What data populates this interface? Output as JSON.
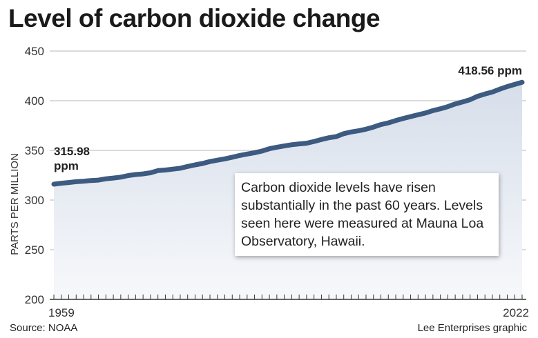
{
  "chart_data": {
    "type": "area",
    "title": "Level of carbon dioxide change",
    "ylabel": "PARTS PER MILLION",
    "xlabel": "",
    "ylim": [
      200,
      450
    ],
    "yticks": [
      200,
      250,
      300,
      350,
      400,
      450
    ],
    "xlim": [
      1959,
      2022
    ],
    "xtick_labels": [
      "1959",
      "2022"
    ],
    "grid": "horizontal",
    "line_color": "#3d5a80",
    "fill_color": "#dde3ee",
    "x": [
      1959,
      1960,
      1961,
      1962,
      1963,
      1964,
      1965,
      1966,
      1967,
      1968,
      1969,
      1970,
      1971,
      1972,
      1973,
      1974,
      1975,
      1976,
      1977,
      1978,
      1979,
      1980,
      1981,
      1982,
      1983,
      1984,
      1985,
      1986,
      1987,
      1988,
      1989,
      1990,
      1991,
      1992,
      1993,
      1994,
      1995,
      1996,
      1997,
      1998,
      1999,
      2000,
      2001,
      2002,
      2003,
      2004,
      2005,
      2006,
      2007,
      2008,
      2009,
      2010,
      2011,
      2012,
      2013,
      2014,
      2015,
      2016,
      2017,
      2018,
      2019,
      2020,
      2021,
      2022
    ],
    "values": [
      315.98,
      316.91,
      317.64,
      318.45,
      318.99,
      319.62,
      320.04,
      321.37,
      322.18,
      323.05,
      324.62,
      325.68,
      326.32,
      327.46,
      329.68,
      330.19,
      331.12,
      332.03,
      333.84,
      335.41,
      336.84,
      338.76,
      340.12,
      341.48,
      343.15,
      344.87,
      346.35,
      347.61,
      349.31,
      351.69,
      353.2,
      354.45,
      355.7,
      356.54,
      357.21,
      358.96,
      360.97,
      362.74,
      363.88,
      366.84,
      368.54,
      369.71,
      371.32,
      373.45,
      375.98,
      377.7,
      379.98,
      382.09,
      384.02,
      385.83,
      387.64,
      390.1,
      391.85,
      394.06,
      396.74,
      398.81,
      401.01,
      404.41,
      406.76,
      408.72,
      411.65,
      414.21,
      416.41,
      418.56
    ],
    "annotations": {
      "start_value": "315.98",
      "start_unit": "ppm",
      "end": "418.56 ppm",
      "note": "Carbon dioxide levels have risen substantially in the past 60 years. Levels seen here were measured at Mauna Loa Observatory, Hawaii."
    }
  },
  "footer": {
    "source": "Source: NOAA",
    "credit": "Lee Enterprises graphic"
  }
}
